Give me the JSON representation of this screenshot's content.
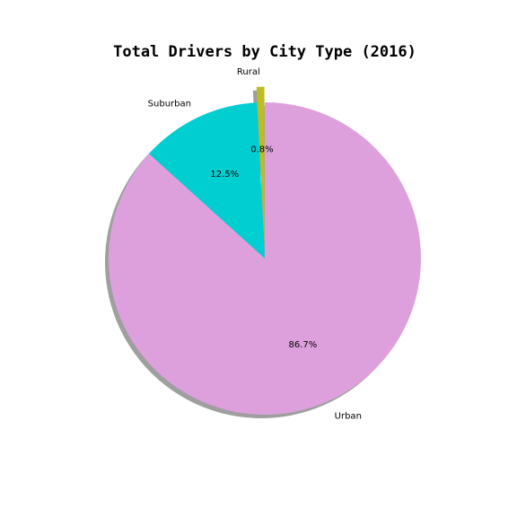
{
  "chart_data": {
    "type": "pie",
    "title": "Total Drivers by City Type (2016)",
    "slices": [
      {
        "label": "Rural",
        "value": 0.8,
        "pct_label": "0.8%",
        "color": "#bcbd22",
        "explode": 0.1
      },
      {
        "label": "Suburban",
        "value": 12.5,
        "pct_label": "12.5%",
        "color": "#00ced1",
        "explode": 0
      },
      {
        "label": "Urban",
        "value": 86.7,
        "pct_label": "86.7%",
        "color": "#dda0dd",
        "explode": 0
      }
    ],
    "start_angle_deg": 90,
    "direction": "counterclockwise",
    "shadow": true
  }
}
